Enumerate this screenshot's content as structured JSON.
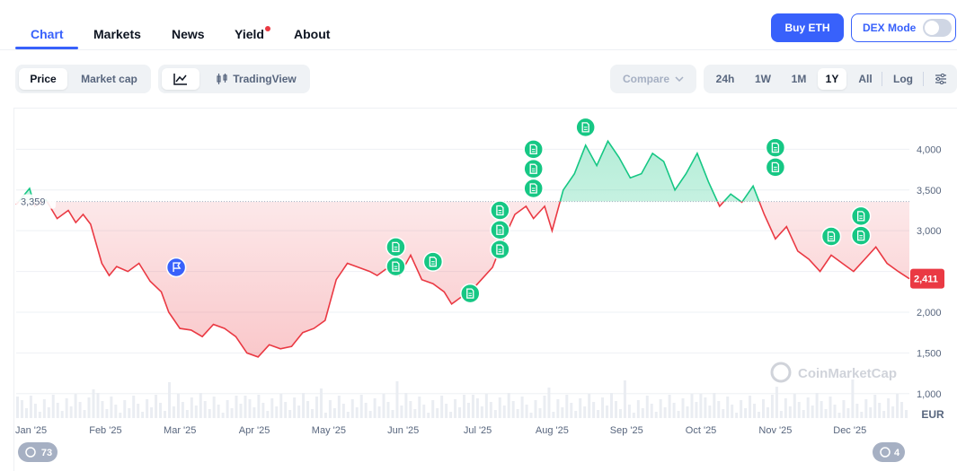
{
  "nav": {
    "tabs": [
      {
        "label": "Chart"
      },
      {
        "label": "Markets"
      },
      {
        "label": "News"
      },
      {
        "label": "Yield"
      },
      {
        "label": "About"
      }
    ],
    "buy_label": "Buy ETH",
    "dex_label": "DEX Mode"
  },
  "controls": {
    "view": [
      "Price",
      "Market cap"
    ],
    "tradingview_label": "TradingView",
    "compare_label": "Compare",
    "ranges": [
      "24h",
      "1W",
      "1M",
      "1Y",
      "All"
    ],
    "log_label": "Log",
    "active_range": "1Y"
  },
  "colors": {
    "accent": "#3861fb",
    "up": "#16c784",
    "down": "#ea3943"
  },
  "chart_data": {
    "type": "line",
    "currency": "EUR",
    "baseline": 3359,
    "baseline_label": "3,359",
    "current_label": "2,411",
    "watermark": "CoinMarketCap",
    "yticks": [
      {
        "value": 1000,
        "label": "1,000"
      },
      {
        "value": 1500,
        "label": "1,500"
      },
      {
        "value": 2000,
        "label": "2,000"
      },
      {
        "value": 2500,
        "label": ""
      },
      {
        "value": 3000,
        "label": "3,000"
      },
      {
        "value": 3500,
        "label": "3,500"
      },
      {
        "value": 4000,
        "label": "4,000"
      }
    ],
    "ylim": [
      700,
      4500
    ],
    "xlim": [
      0,
      12
    ],
    "months": [
      "Jan '25",
      "Feb '25",
      "Mar '25",
      "Apr '25",
      "May '25",
      "Jun '25",
      "Jul '25",
      "Aug '25",
      "Sep '25",
      "Oct '25",
      "Nov '25",
      "Dec '25"
    ],
    "month_x": [
      0.2,
      1.2,
      2.2,
      3.2,
      4.2,
      5.2,
      6.2,
      7.2,
      8.2,
      9.2,
      10.2,
      11.2
    ],
    "x": [
      0,
      0.18,
      0.25,
      0.4,
      0.55,
      0.7,
      0.8,
      0.9,
      1.0,
      1.15,
      1.25,
      1.35,
      1.5,
      1.65,
      1.8,
      1.95,
      2.05,
      2.2,
      2.35,
      2.5,
      2.65,
      2.8,
      2.95,
      3.1,
      3.25,
      3.4,
      3.55,
      3.7,
      3.85,
      4.0,
      4.15,
      4.3,
      4.45,
      4.6,
      4.75,
      4.85,
      5.0,
      5.15,
      5.3,
      5.45,
      5.6,
      5.75,
      5.85,
      6.0,
      6.1,
      6.25,
      6.4,
      6.55,
      6.7,
      6.85,
      6.95,
      7.1,
      7.2,
      7.35,
      7.5,
      7.65,
      7.8,
      7.95,
      8.1,
      8.25,
      8.4,
      8.55,
      8.7,
      8.85,
      9.0,
      9.15,
      9.3,
      9.45,
      9.6,
      9.75,
      9.9,
      10.05,
      10.2,
      10.35,
      10.5,
      10.65,
      10.8,
      10.95,
      11.1,
      11.25,
      11.4,
      11.55,
      11.7,
      11.85,
      12.0
    ],
    "y": [
      3320,
      3520,
      3300,
      3380,
      3150,
      3250,
      3100,
      3200,
      3080,
      2600,
      2450,
      2560,
      2500,
      2600,
      2380,
      2250,
      2000,
      1800,
      1780,
      1700,
      1850,
      1800,
      1700,
      1500,
      1450,
      1600,
      1550,
      1580,
      1750,
      1800,
      1900,
      2400,
      2600,
      2550,
      2500,
      2450,
      2550,
      2450,
      2700,
      2400,
      2350,
      2250,
      2100,
      2200,
      2250,
      2400,
      2550,
      2900,
      3200,
      3300,
      3150,
      3300,
      3000,
      3500,
      3700,
      4050,
      3800,
      4100,
      3900,
      3650,
      3700,
      3950,
      3850,
      3500,
      3700,
      3950,
      3600,
      3300,
      3450,
      3350,
      3550,
      3200,
      2900,
      3050,
      2750,
      2650,
      2500,
      2700,
      2600,
      2500,
      2650,
      2800,
      2600,
      2500,
      2411
    ],
    "event_markers": [
      {
        "x": 2.15,
        "y": 2550,
        "kind": "flag"
      },
      {
        "x": 5.1,
        "y": 2800,
        "kind": "doc"
      },
      {
        "x": 5.1,
        "y": 2560,
        "kind": "doc"
      },
      {
        "x": 5.6,
        "y": 2620,
        "kind": "doc"
      },
      {
        "x": 6.1,
        "y": 2230,
        "kind": "doc"
      },
      {
        "x": 6.5,
        "y": 3250,
        "kind": "doc"
      },
      {
        "x": 6.5,
        "y": 3010,
        "kind": "doc"
      },
      {
        "x": 6.5,
        "y": 2770,
        "kind": "doc"
      },
      {
        "x": 6.95,
        "y": 4000,
        "kind": "doc"
      },
      {
        "x": 6.95,
        "y": 3760,
        "kind": "doc"
      },
      {
        "x": 6.95,
        "y": 3520,
        "kind": "doc"
      },
      {
        "x": 7.65,
        "y": 4270,
        "kind": "doc"
      },
      {
        "x": 10.2,
        "y": 4020,
        "kind": "doc"
      },
      {
        "x": 10.2,
        "y": 3780,
        "kind": "doc"
      },
      {
        "x": 10.95,
        "y": 2930,
        "kind": "doc"
      },
      {
        "x": 11.35,
        "y": 3180,
        "kind": "doc"
      },
      {
        "x": 11.35,
        "y": 2940,
        "kind": "doc"
      }
    ],
    "footer_badges": {
      "left": "73",
      "right": "4"
    }
  }
}
